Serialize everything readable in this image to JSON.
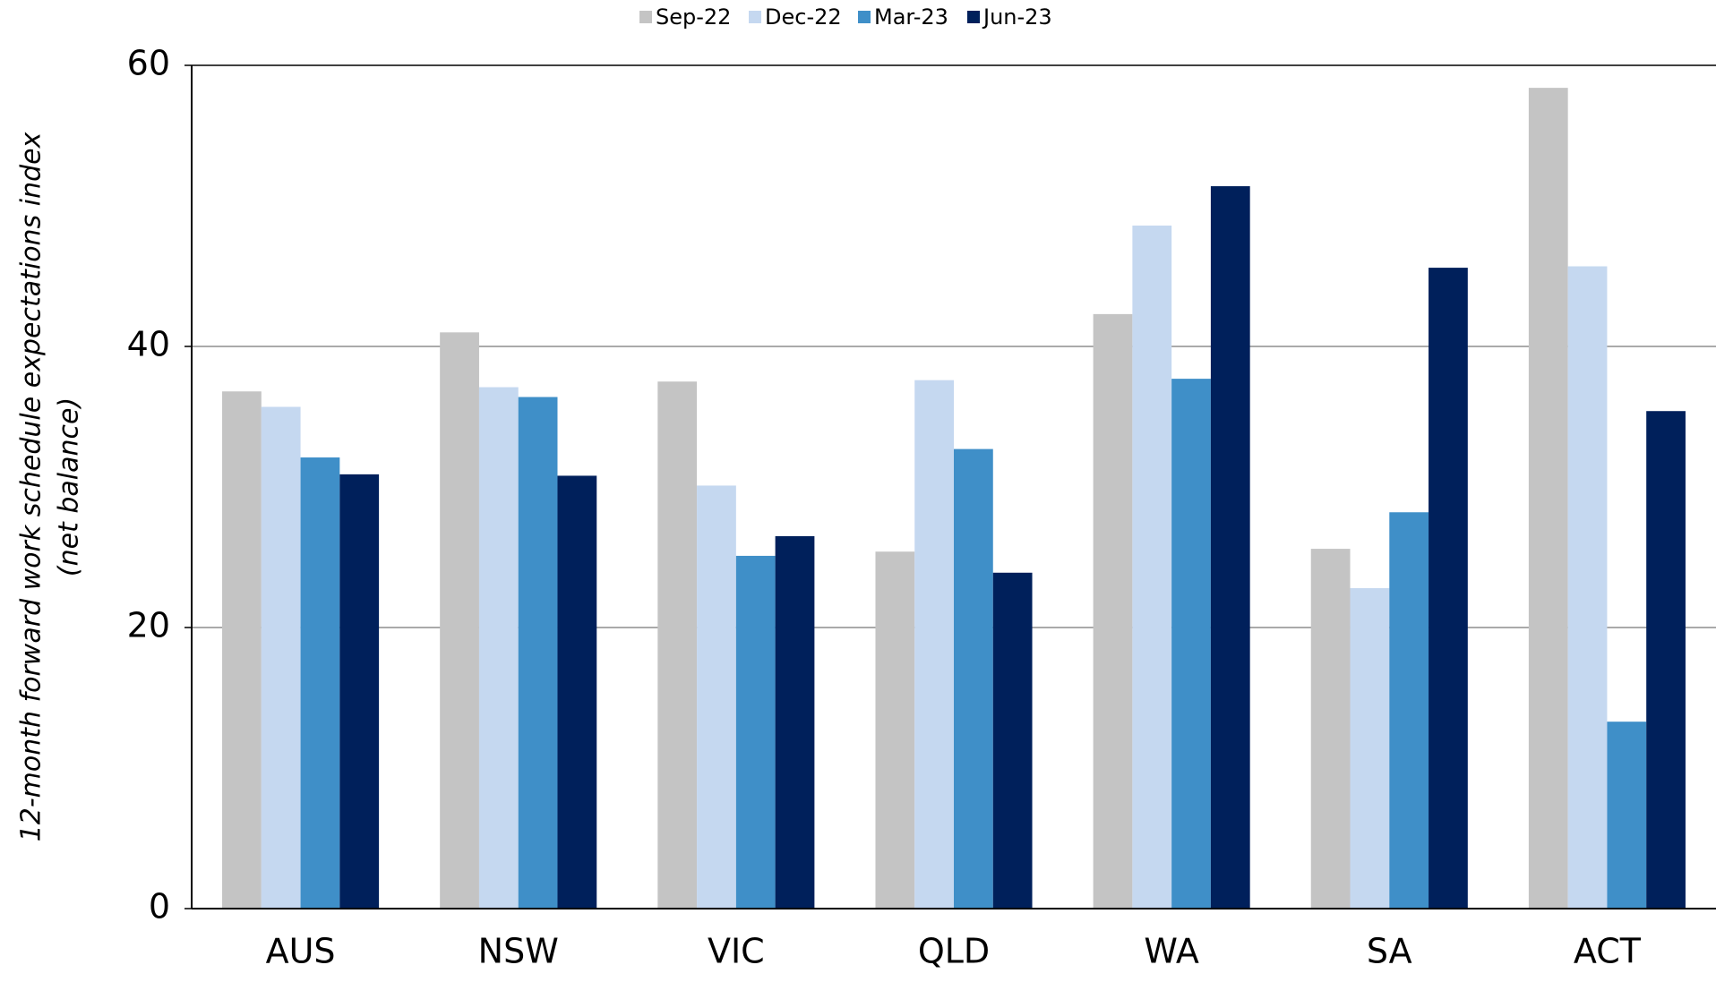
{
  "chart_data": {
    "type": "bar",
    "ylabel": [
      "12-month forward work schedule expectations index",
      "(net balance)"
    ],
    "categories": [
      "AUS",
      "NSW",
      "VIC",
      "QLD",
      "WA",
      "SA",
      "ACT"
    ],
    "series": [
      {
        "name": "Sep-22",
        "color": "#c4c4c4",
        "values": [
          36.8,
          41.0,
          37.5,
          25.4,
          42.3,
          25.6,
          58.4
        ]
      },
      {
        "name": "Dec-22",
        "color": "#c5d8f0",
        "values": [
          35.7,
          37.1,
          30.1,
          37.6,
          48.6,
          22.8,
          45.7
        ]
      },
      {
        "name": "Mar-23",
        "color": "#3f8fc8",
        "values": [
          32.1,
          36.4,
          25.1,
          32.7,
          37.7,
          28.2,
          13.3
        ]
      },
      {
        "name": "Jun-23",
        "color": "#00205b",
        "values": [
          30.9,
          30.8,
          26.5,
          23.9,
          51.4,
          45.6,
          35.4
        ]
      }
    ],
    "ylim": [
      0,
      60
    ],
    "yticks": [
      0,
      20,
      40,
      60
    ],
    "grid": true,
    "legend": "top"
  }
}
